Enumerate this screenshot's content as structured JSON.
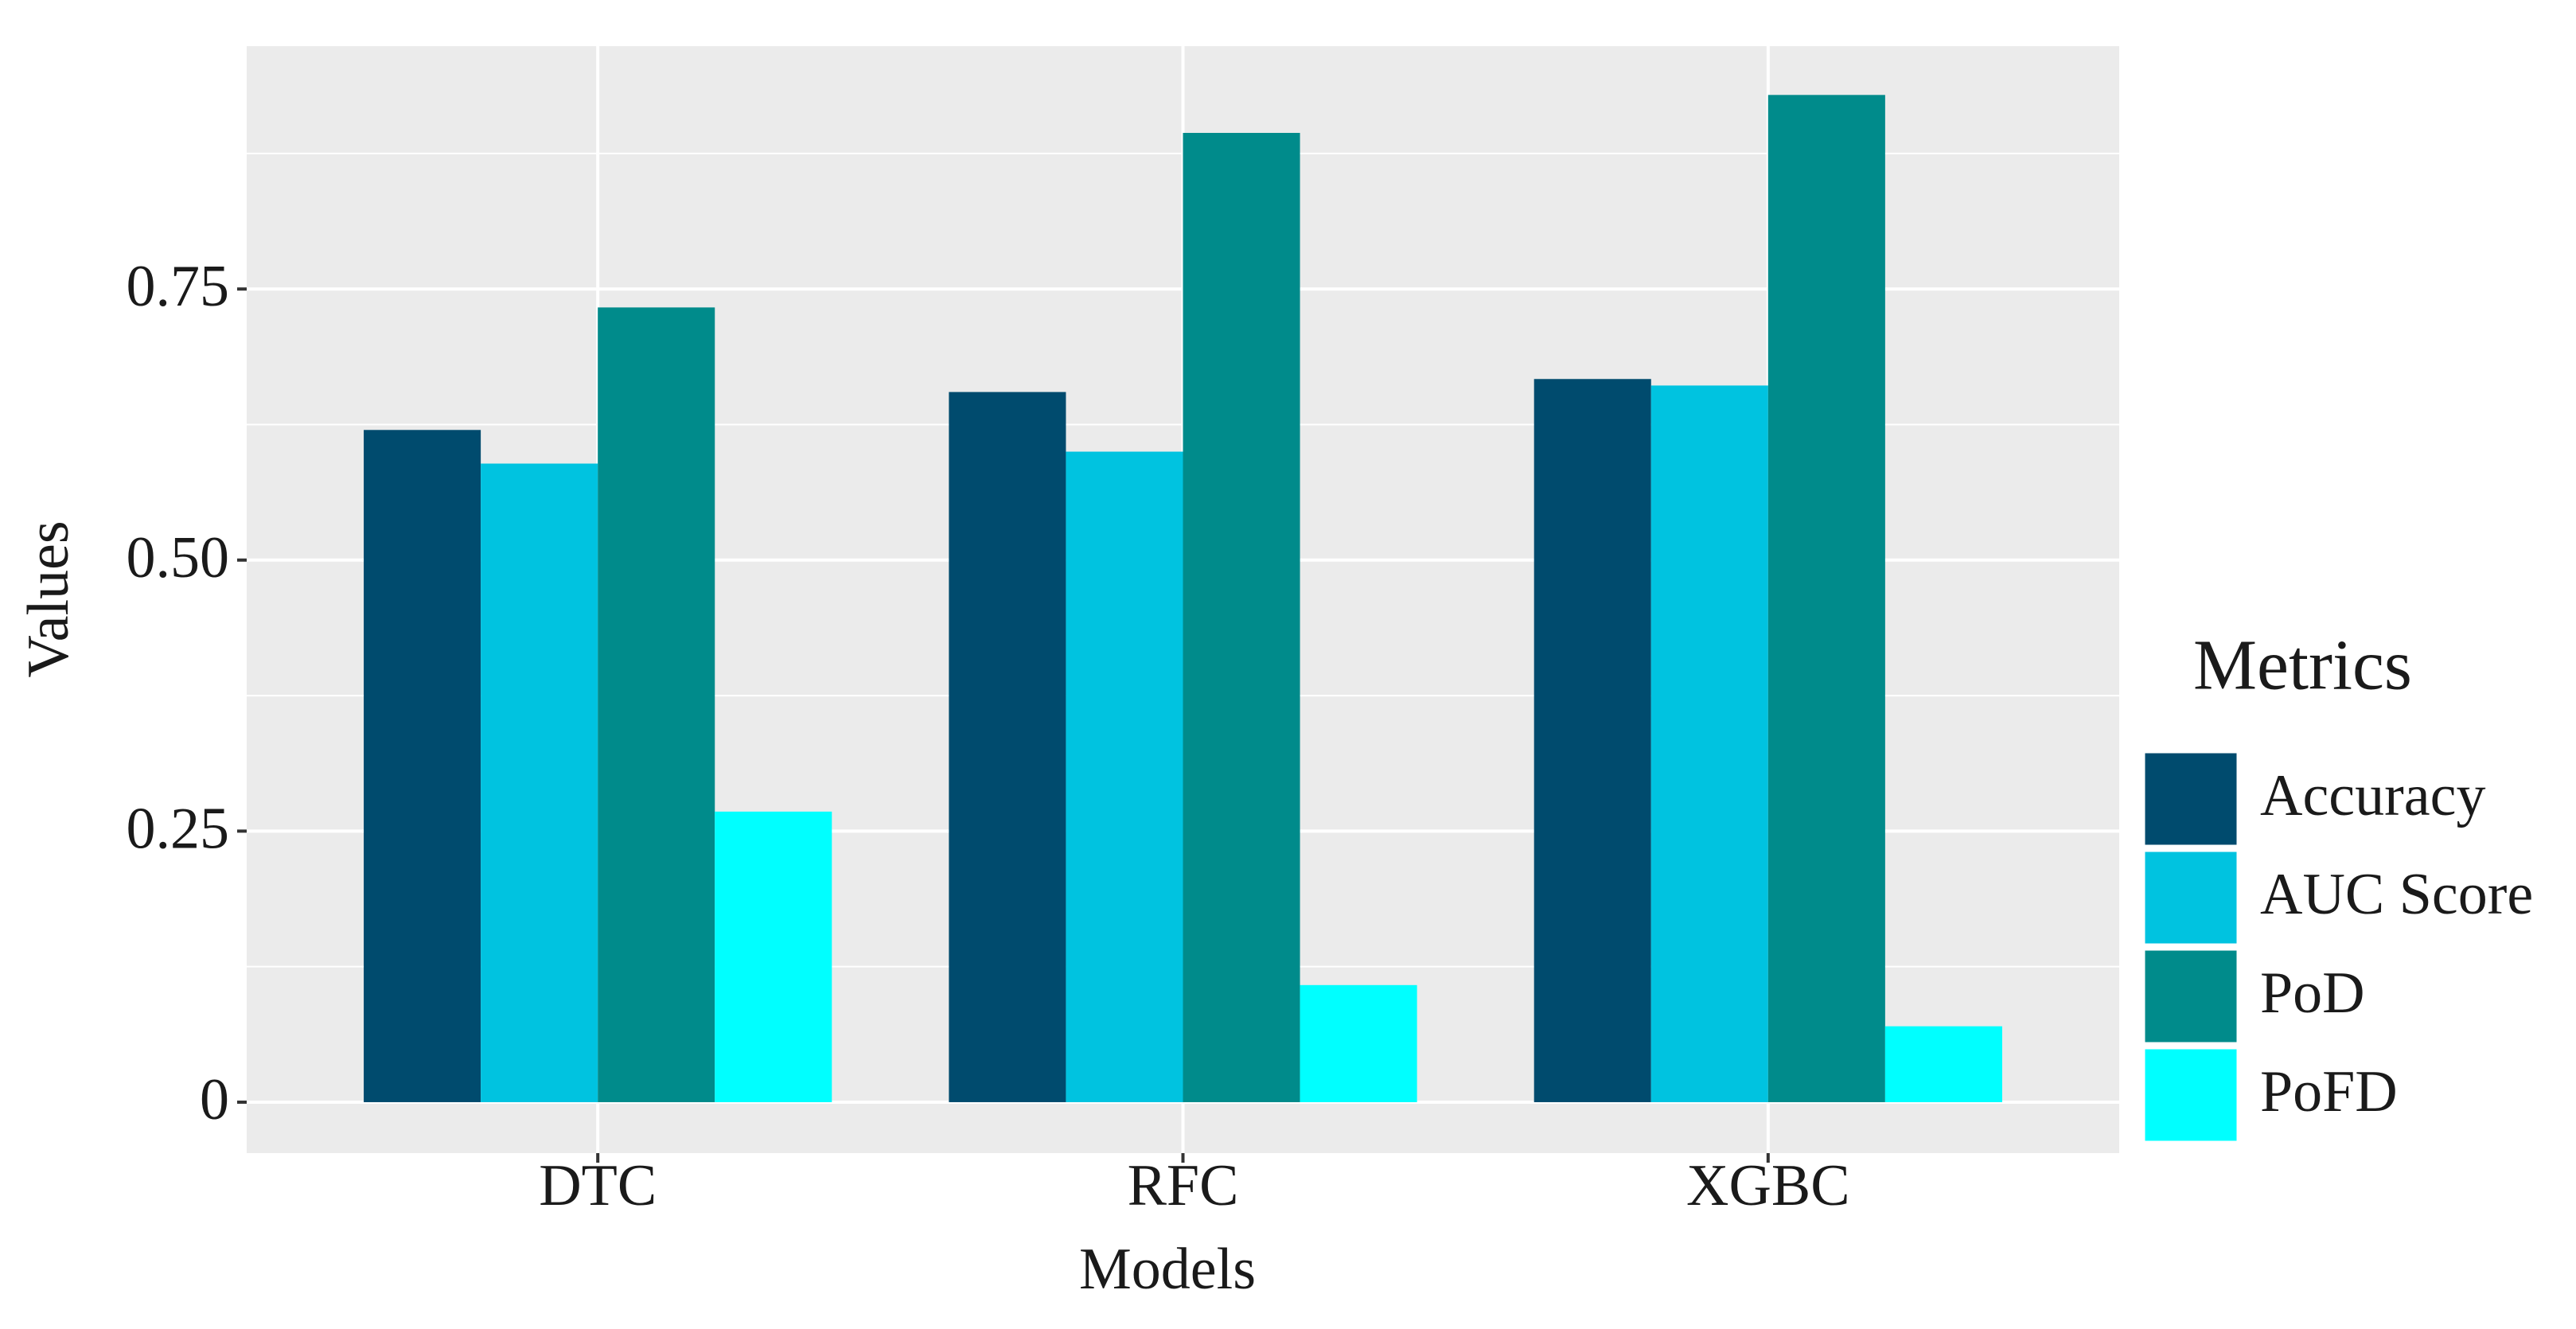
{
  "chart_data": {
    "type": "bar",
    "categories": [
      "DTC",
      "RFC",
      "XGBC"
    ],
    "series": [
      {
        "name": "Accuracy",
        "color": "#004b6e",
        "values": [
          0.62,
          0.655,
          0.667
        ]
      },
      {
        "name": "AUC Score",
        "color": "#00c3e0",
        "values": [
          0.589,
          0.6,
          0.661
        ]
      },
      {
        "name": "PoD",
        "color": "#008b8b",
        "values": [
          0.733,
          0.894,
          0.929
        ]
      },
      {
        "name": "PoFD",
        "color": "#00ffff",
        "values": [
          0.268,
          0.108,
          0.07
        ]
      }
    ],
    "x_label": "Models",
    "y_label": "Values",
    "legend_title": "Metrics",
    "ylim": [
      -0.047,
      0.974
    ],
    "yticks": [
      0,
      0.25,
      {
        "value": 0.5,
        "label": "0.50"
      },
      0.75
    ],
    "grid": true,
    "legend": "right"
  }
}
